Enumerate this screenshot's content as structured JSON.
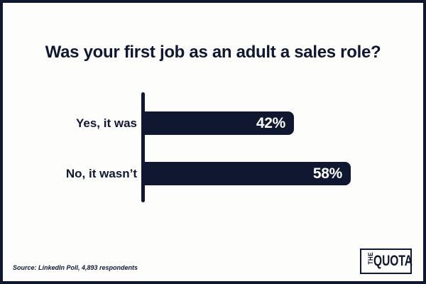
{
  "title": "Was your first job as an adult a sales role?",
  "chart_data": {
    "type": "bar",
    "orientation": "horizontal",
    "title": "Was your first job as an adult a sales role?",
    "categories": [
      "Yes, it was",
      "No, it wasn’t"
    ],
    "values": [
      42,
      58
    ],
    "value_labels": [
      "42%",
      "58%"
    ],
    "xlabel": "",
    "ylabel": "",
    "xlim": [
      0,
      100
    ],
    "grid": false,
    "legend": false,
    "value_label_position": "inside-end",
    "bar_color": "#101731",
    "value_label_color": "#ffffff"
  },
  "source_note": "Source: LinkedIn Poll, 4,893 respondents",
  "logo": {
    "line_vertical": "THE",
    "line_main": "QUOTA"
  },
  "colors": {
    "navy": "#101731",
    "background": "#fdfdfb",
    "border": "#101731"
  }
}
